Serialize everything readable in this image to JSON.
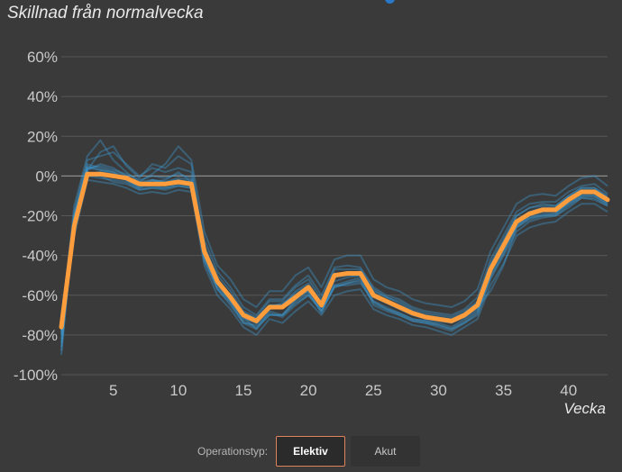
{
  "title": "Skillnad från normalvecka",
  "colors": {
    "background": "#3a3a3a",
    "grid": "#575757",
    "zero_line": "#8c8c8c",
    "tick_text": "#c9c9c9",
    "thin_lines": "#3d9bd4",
    "highlight": "#ff9d3c",
    "selected_border": "#e0825c"
  },
  "controls": {
    "label": "Operationstyp:",
    "options": [
      "Elektiv",
      "Akut"
    ],
    "selected": "Elektiv"
  },
  "chart_data": {
    "type": "line",
    "title": "Skillnad från normalvecka",
    "xlabel": "Vecka",
    "ylabel": "",
    "xlim": [
      1,
      43
    ],
    "ylim": [
      -100,
      60
    ],
    "xticks": [
      5,
      10,
      15,
      20,
      25,
      30,
      35,
      40
    ],
    "yticks": [
      60,
      40,
      20,
      0,
      -20,
      -40,
      -60,
      -80,
      -100
    ],
    "ytick_labels": [
      "60%",
      "40%",
      "20%",
      "0%",
      "-20%",
      "-40%",
      "-60%",
      "-80%",
      "-100%"
    ],
    "grid": "horizontal",
    "x": [
      1,
      2,
      3,
      4,
      5,
      6,
      7,
      8,
      9,
      10,
      11,
      12,
      13,
      14,
      15,
      16,
      17,
      18,
      19,
      20,
      21,
      22,
      23,
      24,
      25,
      26,
      27,
      28,
      29,
      30,
      31,
      32,
      33,
      34,
      35,
      36,
      37,
      38,
      39,
      40,
      41,
      42,
      43
    ],
    "series": [
      {
        "values": [
          -76,
          -25,
          1,
          1,
          0,
          -1,
          -4,
          -4,
          -4,
          -3,
          -4,
          -38,
          -53,
          -61,
          -70,
          -73,
          -66,
          -66,
          -61,
          -56,
          -65,
          -50,
          -49,
          -49,
          -60,
          -63,
          -66,
          -69,
          -71,
          -72,
          -73,
          -70,
          -65,
          -47,
          -35,
          -23,
          -19,
          -17,
          -17,
          -12,
          -8,
          -8,
          -12
        ],
        "highlight": true
      },
      {
        "values": [
          -90,
          -20,
          5,
          3,
          2,
          -2,
          -6,
          -2,
          -5,
          -2,
          -5,
          -40,
          -55,
          -63,
          -71,
          -77,
          -68,
          -70,
          -62,
          -58,
          -69,
          -55,
          -55,
          -54,
          -63,
          -67,
          -69,
          -72,
          -73,
          -74,
          -76,
          -72,
          -67,
          -48,
          -37,
          -25,
          -20,
          -18,
          -18,
          -14,
          -10,
          -10,
          -14
        ]
      },
      {
        "values": [
          -84,
          -28,
          2,
          0,
          -3,
          -4,
          -7,
          -6,
          -7,
          -5,
          -6,
          -43,
          -57,
          -64,
          -74,
          -75,
          -69,
          -71,
          -65,
          -60,
          -67,
          -56,
          -54,
          -52,
          -65,
          -68,
          -70,
          -73,
          -74,
          -76,
          -78,
          -74,
          -70,
          -52,
          -40,
          -28,
          -23,
          -21,
          -20,
          -16,
          -11,
          -12,
          -15
        ]
      },
      {
        "values": [
          -70,
          -22,
          4,
          5,
          3,
          1,
          -2,
          0,
          -1,
          1,
          -1,
          -32,
          -48,
          -56,
          -66,
          -70,
          -62,
          -62,
          -55,
          -50,
          -60,
          -46,
          -45,
          -46,
          -56,
          -60,
          -62,
          -66,
          -68,
          -69,
          -70,
          -67,
          -61,
          -42,
          -30,
          -18,
          -14,
          -13,
          -13,
          -8,
          -5,
          -4,
          -9
        ]
      },
      {
        "values": [
          -80,
          -18,
          8,
          10,
          12,
          6,
          0,
          4,
          2,
          4,
          2,
          -35,
          -52,
          -60,
          -69,
          -72,
          -65,
          -65,
          -58,
          -54,
          -64,
          -49,
          -49,
          -48,
          -58,
          -61,
          -64,
          -68,
          -70,
          -71,
          -72,
          -69,
          -64,
          -45,
          -33,
          -20,
          -16,
          -14,
          -15,
          -10,
          -6,
          -6,
          -10
        ]
      },
      {
        "values": [
          -78,
          -30,
          -2,
          -3,
          -4,
          -6,
          -9,
          -8,
          -9,
          -7,
          -8,
          -45,
          -60,
          -67,
          -76,
          -80,
          -72,
          -74,
          -68,
          -63,
          -70,
          -60,
          -58,
          -57,
          -67,
          -70,
          -72,
          -75,
          -76,
          -78,
          -80,
          -76,
          -72,
          -55,
          -44,
          -30,
          -26,
          -24,
          -23,
          -18,
          -14,
          -14,
          -18
        ]
      },
      {
        "values": [
          -74,
          -15,
          10,
          18,
          8,
          2,
          -3,
          1,
          6,
          15,
          8,
          -28,
          -45,
          -52,
          -62,
          -66,
          -58,
          -58,
          -50,
          -46,
          -56,
          -42,
          -40,
          -40,
          -52,
          -56,
          -58,
          -62,
          -64,
          -65,
          -66,
          -63,
          -57,
          -38,
          -26,
          -14,
          -10,
          -9,
          -10,
          -5,
          -1,
          0,
          -5
        ]
      },
      {
        "values": [
          -82,
          -24,
          3,
          6,
          4,
          0,
          -5,
          -3,
          -2,
          2,
          -3,
          -38,
          -54,
          -62,
          -72,
          -74,
          -67,
          -66,
          -60,
          -57,
          -66,
          -53,
          -51,
          -50,
          -61,
          -64,
          -67,
          -70,
          -72,
          -73,
          -74,
          -71,
          -66,
          -58,
          -45,
          -26,
          -21,
          -19,
          -19,
          -13,
          -9,
          -9,
          -13
        ]
      },
      {
        "values": [
          -86,
          -26,
          1,
          2,
          0,
          -2,
          -6,
          -5,
          -6,
          -4,
          -5,
          -41,
          -56,
          -63,
          -73,
          -76,
          -70,
          -70,
          -63,
          -59,
          -68,
          -55,
          -53,
          -51,
          -63,
          -66,
          -69,
          -72,
          -73,
          -75,
          -77,
          -73,
          -68,
          -50,
          -38,
          -25,
          -21,
          -20,
          -19,
          -14,
          -10,
          -10,
          -14
        ]
      },
      {
        "values": [
          -72,
          -20,
          6,
          4,
          2,
          0,
          -4,
          -2,
          -3,
          -1,
          -2,
          -36,
          -50,
          -58,
          -68,
          -71,
          -63,
          -63,
          -56,
          -52,
          -62,
          -47,
          -47,
          -47,
          -57,
          -61,
          -63,
          -67,
          -69,
          -70,
          -71,
          -68,
          -63,
          -44,
          -32,
          -20,
          -16,
          -15,
          -15,
          -10,
          -6,
          -6,
          -11
        ]
      },
      {
        "values": [
          -88,
          -22,
          3,
          12,
          15,
          5,
          -1,
          6,
          4,
          10,
          6,
          -39,
          -53,
          -61,
          -70,
          -73,
          -66,
          -64,
          -60,
          -58,
          -63,
          -51,
          -50,
          -50,
          -59,
          -63,
          -66,
          -69,
          -71,
          -72,
          -73,
          -70,
          -65,
          -46,
          -34,
          -22,
          -18,
          -16,
          -16,
          -11,
          -7,
          -7,
          -11
        ]
      },
      {
        "values": [
          -76,
          -27,
          0,
          -1,
          -2,
          -3,
          -7,
          -6,
          -6,
          -5,
          -6,
          -42,
          -57,
          -65,
          -74,
          -77,
          -70,
          -70,
          -64,
          -60,
          -68,
          -56,
          -54,
          -53,
          -64,
          -67,
          -70,
          -73,
          -74,
          -75,
          -77,
          -74,
          -69,
          -51,
          -39,
          -26,
          -22,
          -20,
          -20,
          -15,
          -11,
          -11,
          -15
        ]
      },
      {
        "values": [
          -79,
          -21,
          4,
          3,
          1,
          -1,
          -3,
          -2,
          -3,
          -2,
          -3,
          -37,
          -52,
          -60,
          -69,
          -72,
          -65,
          -65,
          -59,
          -55,
          -64,
          -50,
          -49,
          -49,
          -60,
          -63,
          -66,
          -69,
          -71,
          -72,
          -73,
          -70,
          -65,
          -47,
          -35,
          -23,
          -19,
          -17,
          -17,
          -12,
          -8,
          -8,
          -12
        ]
      }
    ]
  }
}
